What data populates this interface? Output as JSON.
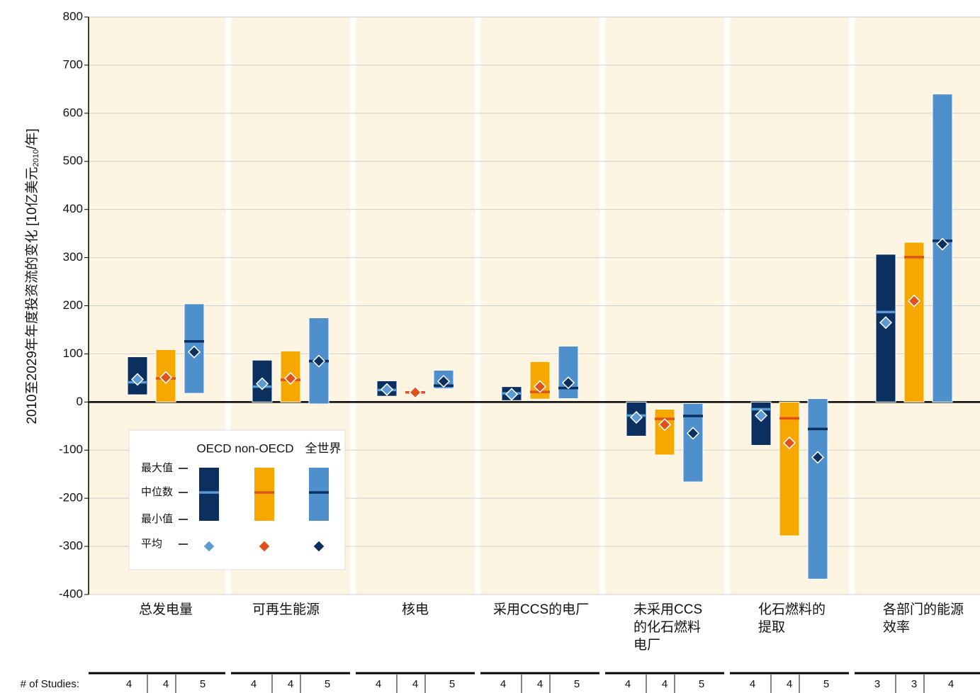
{
  "chart_data": {
    "type": "bar",
    "ylabel": "2010至2029年年度投资流的变化 [10亿美元",
    "ylabel_sub": "2010",
    "ylabel_end": "/年]",
    "categories": [
      "总发电量",
      "可再生能源",
      "核电",
      "采用CCS的电厂",
      "未采用CCS\n的化石燃料\n电厂",
      "化石燃料的\n提取",
      "各部门的能源\n效率"
    ],
    "ylim": [
      -400,
      800
    ],
    "yticks": [
      -400,
      -300,
      -200,
      -100,
      0,
      100,
      200,
      300,
      400,
      500,
      600,
      700,
      800
    ],
    "grid": true,
    "series": [
      {
        "name": "OECD",
        "color": "#0b2f5f",
        "median_color": "#5b9bd5",
        "mean_color": "#5b9bd5",
        "max": [
          94,
          87,
          44,
          32,
          0,
          0,
          307
        ],
        "min": [
          15,
          0,
          12,
          3,
          -71,
          -90,
          0
        ],
        "median": [
          41,
          32,
          25,
          18,
          -28,
          -15,
          187
        ],
        "mean": [
          47,
          38,
          26,
          16,
          -32,
          -28,
          165
        ]
      },
      {
        "name": "non-OECD",
        "color": "#f5a800",
        "median_color": "#e0521b",
        "mean_color": "#e0521b",
        "max": [
          109,
          106,
          22,
          84,
          -15,
          0,
          332
        ],
        "min": [
          0,
          0,
          18,
          6,
          -110,
          -278,
          0
        ],
        "median": [
          49,
          46,
          20,
          21,
          -35,
          -34,
          301
        ],
        "mean": [
          51,
          49,
          20,
          32,
          -47,
          -85,
          210
        ]
      },
      {
        "name": "全世界",
        "color": "#4e8fcc",
        "median_color": "#0b2f5f",
        "mean_color": "#0b2f5f",
        "max": [
          204,
          175,
          66,
          116,
          -3,
          7,
          640
        ],
        "min": [
          18,
          -4,
          28,
          7,
          -166,
          -368,
          0
        ],
        "median": [
          126,
          85,
          34,
          29,
          -29,
          -56,
          335
        ],
        "mean": [
          104,
          85,
          43,
          40,
          -65,
          -115,
          328
        ]
      }
    ],
    "legend": {
      "max": "最大值",
      "median": "中位数",
      "min": "最小值",
      "mean": "平均"
    },
    "studies": {
      "label": "# of Studies:",
      "counts": [
        [
          4,
          4,
          5
        ],
        [
          4,
          4,
          5
        ],
        [
          4,
          4,
          5
        ],
        [
          4,
          4,
          5
        ],
        [
          4,
          4,
          5
        ],
        [
          4,
          4,
          5
        ],
        [
          3,
          3,
          4
        ]
      ]
    }
  }
}
